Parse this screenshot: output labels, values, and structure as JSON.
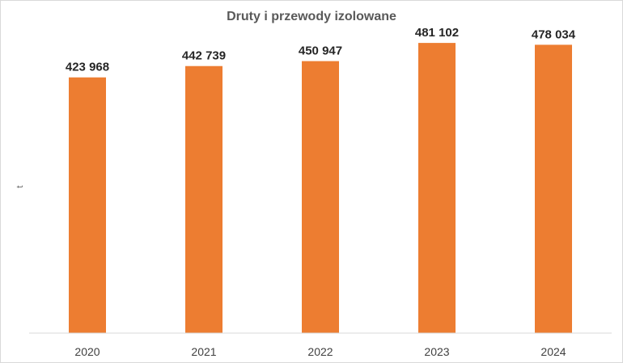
{
  "chart_data": {
    "type": "bar",
    "title": "Druty i przewody izolowane",
    "xlabel": "",
    "ylabel": "t",
    "categories": [
      "2020",
      "2021",
      "2022",
      "2023",
      "2024"
    ],
    "values": [
      423968,
      442739,
      450947,
      481102,
      478034
    ],
    "data_labels": [
      "423 968",
      "442 739",
      "450 947",
      "481 102",
      "478 034"
    ],
    "ylim": [
      0,
      500000
    ],
    "grid": false,
    "legend": "none",
    "colors": {
      "bar": "#ED7D31",
      "axis": "#d9d9d9"
    }
  }
}
